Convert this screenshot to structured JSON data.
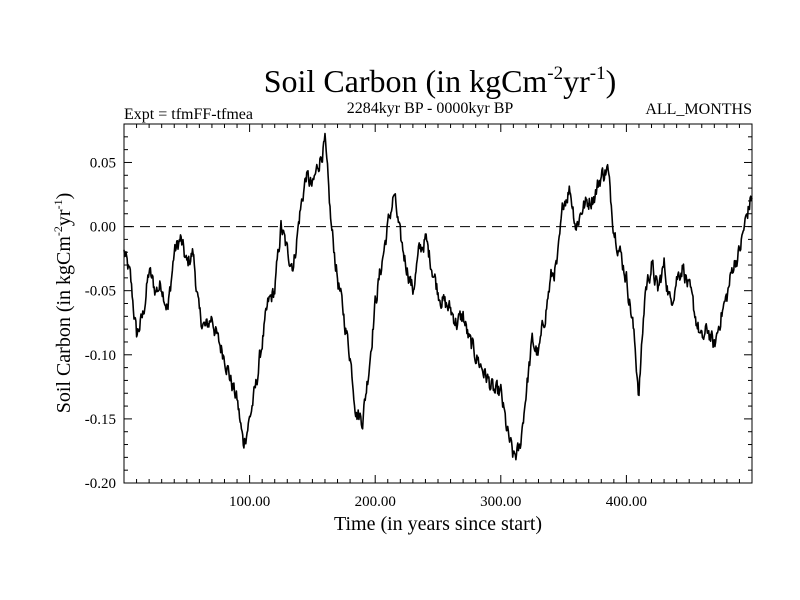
{
  "chart_data": {
    "type": "line",
    "title": {
      "main": "Soil Carbon (in kgCm",
      "exp1": "-2",
      "mid": "yr",
      "exp2": "-1",
      "end": ")"
    },
    "subtitle_left": "Expt = tfmFF-tfmea",
    "subtitle_center": "2284kyr BP - 0000kyr BP",
    "subtitle_right": "ALL_MONTHS",
    "xlabel": "Time (in years since start)",
    "ylabel": {
      "main": "Soil Carbon (in kgCm",
      "exp1": "-2",
      "mid": "yr",
      "exp2": "-1",
      "end": ")"
    },
    "xlim": [
      0,
      500
    ],
    "ylim": [
      -0.2,
      0.08
    ],
    "x_ticks": [
      100,
      200,
      300,
      400
    ],
    "x_tick_labels": [
      "100.00",
      "200.00",
      "300.00",
      "400.00"
    ],
    "y_ticks": [
      -0.2,
      -0.15,
      -0.1,
      -0.05,
      0.0,
      0.05
    ],
    "y_tick_labels": [
      "-0.20",
      "-0.15",
      "-0.10",
      "-0.05",
      "0.00",
      "0.05"
    ],
    "reference_line": 0.0,
    "grid": false,
    "series": [
      {
        "name": "Soil Carbon",
        "x": [
          0,
          5,
          10,
          15,
          20,
          25,
          30,
          35,
          40,
          45,
          50,
          55,
          60,
          65,
          70,
          75,
          80,
          85,
          90,
          95,
          100,
          105,
          110,
          115,
          120,
          125,
          130,
          135,
          140,
          145,
          150,
          155,
          160,
          165,
          170,
          175,
          180,
          185,
          190,
          195,
          200,
          205,
          210,
          215,
          220,
          225,
          230,
          235,
          240,
          245,
          250,
          255,
          260,
          265,
          270,
          275,
          280,
          285,
          290,
          295,
          300,
          305,
          310,
          315,
          320,
          325,
          330,
          335,
          340,
          345,
          350,
          355,
          360,
          365,
          370,
          375,
          380,
          385,
          390,
          395,
          400,
          405,
          410,
          415,
          420,
          425,
          430,
          435,
          440,
          445,
          450,
          455,
          460,
          465,
          470,
          475,
          480,
          485,
          490,
          495,
          500
        ],
        "values": [
          -0.02,
          -0.04,
          -0.085,
          -0.07,
          -0.035,
          -0.05,
          -0.045,
          -0.065,
          -0.02,
          -0.01,
          -0.03,
          -0.02,
          -0.07,
          -0.08,
          -0.07,
          -0.09,
          -0.1,
          -0.12,
          -0.135,
          -0.17,
          -0.15,
          -0.125,
          -0.09,
          -0.06,
          -0.05,
          0.0,
          -0.02,
          -0.03,
          0.01,
          0.04,
          0.03,
          0.05,
          0.065,
          0.0,
          -0.04,
          -0.07,
          -0.1,
          -0.145,
          -0.15,
          -0.11,
          -0.06,
          -0.03,
          0.0,
          0.025,
          -0.01,
          -0.03,
          -0.05,
          -0.02,
          -0.01,
          -0.03,
          -0.05,
          -0.06,
          -0.065,
          -0.075,
          -0.07,
          -0.09,
          -0.1,
          -0.11,
          -0.12,
          -0.13,
          -0.13,
          -0.16,
          -0.18,
          -0.175,
          -0.13,
          -0.09,
          -0.1,
          -0.07,
          -0.04,
          -0.03,
          0.02,
          0.03,
          0.0,
          0.015,
          0.02,
          0.025,
          0.04,
          0.045,
          0.0,
          -0.02,
          -0.04,
          -0.075,
          -0.13,
          -0.05,
          -0.03,
          -0.05,
          -0.03,
          -0.06,
          -0.04,
          -0.03,
          -0.05,
          -0.07,
          -0.09,
          -0.08,
          -0.095,
          -0.07,
          -0.055,
          -0.03,
          -0.02,
          0.005,
          0.025
        ]
      }
    ]
  }
}
